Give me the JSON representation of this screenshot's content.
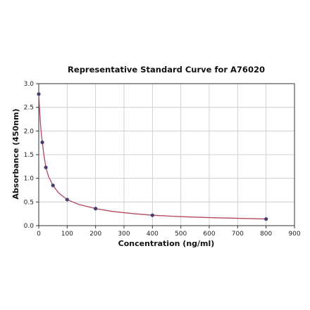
{
  "chart_data": {
    "type": "scatter",
    "title": "Representative Standard Curve for A76020",
    "xlabel": "Concentration (ng/ml)",
    "ylabel": "Absorbance (450nm)",
    "xlim": [
      0,
      900
    ],
    "ylim": [
      0.0,
      3.0
    ],
    "xticks": [
      0,
      100,
      200,
      300,
      400,
      500,
      600,
      700,
      800,
      900
    ],
    "yticks": [
      0.0,
      0.5,
      1.0,
      1.5,
      2.0,
      2.5,
      3.0
    ],
    "xtick_labels": [
      "0",
      "100",
      "200",
      "300",
      "400",
      "500",
      "600",
      "700",
      "800",
      "900"
    ],
    "ytick_labels": [
      "0.0",
      "0.5",
      "1.0",
      "1.5",
      "2.0",
      "2.5",
      "3.0"
    ],
    "grid": true,
    "series": [
      {
        "points": [
          {
            "x": 0,
            "y": 2.78
          },
          {
            "x": 12.5,
            "y": 1.76
          },
          {
            "x": 25,
            "y": 1.23
          },
          {
            "x": 50,
            "y": 0.85
          },
          {
            "x": 100,
            "y": 0.55
          },
          {
            "x": 200,
            "y": 0.36
          },
          {
            "x": 400,
            "y": 0.22
          },
          {
            "x": 800,
            "y": 0.14
          }
        ],
        "fit_curve": [
          {
            "x": 0,
            "y": 2.78
          },
          {
            "x": 3,
            "y": 2.45
          },
          {
            "x": 6,
            "y": 2.16
          },
          {
            "x": 9,
            "y": 1.94
          },
          {
            "x": 12.5,
            "y": 1.76
          },
          {
            "x": 18,
            "y": 1.5
          },
          {
            "x": 25,
            "y": 1.23
          },
          {
            "x": 35,
            "y": 1.03
          },
          {
            "x": 50,
            "y": 0.85
          },
          {
            "x": 70,
            "y": 0.69
          },
          {
            "x": 100,
            "y": 0.55
          },
          {
            "x": 140,
            "y": 0.45
          },
          {
            "x": 200,
            "y": 0.36
          },
          {
            "x": 260,
            "y": 0.3
          },
          {
            "x": 330,
            "y": 0.255
          },
          {
            "x": 400,
            "y": 0.22
          },
          {
            "x": 500,
            "y": 0.19
          },
          {
            "x": 600,
            "y": 0.17
          },
          {
            "x": 700,
            "y": 0.155
          },
          {
            "x": 800,
            "y": 0.14
          }
        ]
      }
    ]
  },
  "colors": {
    "curve": "#b5475f",
    "point": "#463d71",
    "grid": "#c8c8c8",
    "axes": "#333333"
  }
}
